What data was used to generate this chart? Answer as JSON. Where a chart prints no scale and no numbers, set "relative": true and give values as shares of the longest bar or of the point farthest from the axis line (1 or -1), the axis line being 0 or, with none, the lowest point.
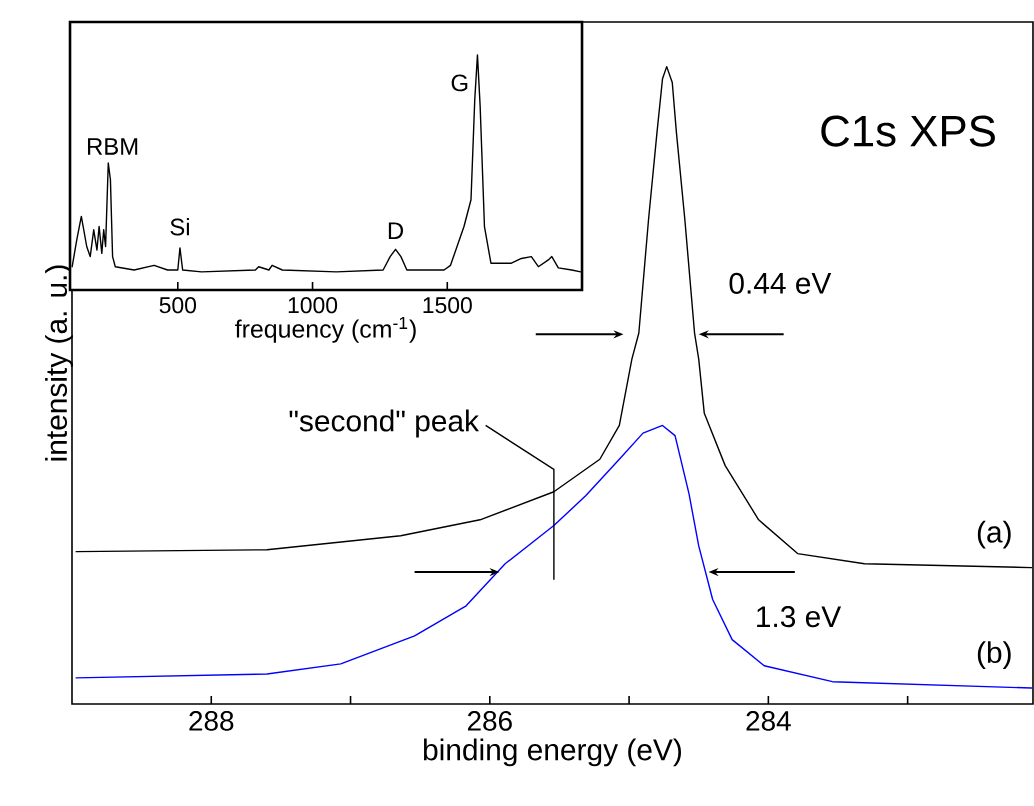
{
  "chart_data": [
    {
      "type": "line",
      "relative": true,
      "title": "C1s XPS",
      "xlabel": "binding energy (eV)",
      "ylabel": "intensity (a. u.)",
      "xlim": [
        289,
        282.1
      ],
      "xticks": [
        288,
        {
          "value": 287,
          "label": null
        },
        286,
        {
          "value": 285,
          "label": null
        },
        284,
        {
          "value": 283,
          "label": null
        }
      ],
      "series": [
        {
          "name": "(a)",
          "color": "#000000",
          "x": [
            288.97,
            287.6,
            286.64,
            286.07,
            285.54,
            285.21,
            285.07,
            284.98,
            284.93,
            284.86,
            284.8,
            284.76,
            284.73,
            284.69,
            284.66,
            284.6,
            284.53,
            284.5,
            284.46,
            284.31,
            284.07,
            283.79,
            283.31,
            282.11
          ],
          "values": [
            0.239,
            0.242,
            0.264,
            0.289,
            0.333,
            0.384,
            0.437,
            0.541,
            0.582,
            0.761,
            0.896,
            0.981,
            1.0,
            0.975,
            0.896,
            0.761,
            0.582,
            0.541,
            0.456,
            0.374,
            0.289,
            0.236,
            0.22,
            0.214
          ]
        },
        {
          "name": "(b)",
          "color": "#0000ff",
          "x": [
            288.97,
            287.6,
            287.07,
            286.54,
            286.17,
            285.89,
            285.54,
            285.31,
            285.07,
            284.9,
            284.76,
            284.67,
            284.57,
            284.5,
            284.4,
            284.26,
            284.03,
            283.54,
            282.11
          ],
          "values": [
            0.041,
            0.047,
            0.063,
            0.107,
            0.154,
            0.22,
            0.28,
            0.327,
            0.384,
            0.425,
            0.437,
            0.421,
            0.33,
            0.248,
            0.164,
            0.101,
            0.06,
            0.035,
            0.025
          ]
        }
      ],
      "annotations": [
        "0.44 eV",
        "1.3 eV",
        "\"second\" peak"
      ]
    },
    {
      "type": "line",
      "relative": true,
      "xlabel": "frequency (cm$^{-1}$)",
      "xlim": [
        100,
        2000
      ],
      "xticks": [
        500,
        1000,
        1500
      ],
      "color": "#000000",
      "x": [
        108,
        125,
        142,
        162,
        175,
        188,
        200,
        208,
        218,
        225,
        232,
        242,
        250,
        258,
        268,
        338,
        412,
        462,
        500,
        508,
        518,
        588,
        788,
        800,
        838,
        850,
        888,
        1088,
        1262,
        1288,
        1308,
        1328,
        1350,
        1488,
        1512,
        1562,
        1588,
        1602,
        1612,
        1622,
        1638,
        1662,
        1738,
        1775,
        1812,
        1838,
        1875,
        1888,
        1912,
        1962,
        1995
      ],
      "values": [
        0.099,
        0.213,
        0.313,
        0.185,
        0.142,
        0.256,
        0.17,
        0.27,
        0.156,
        0.256,
        0.185,
        0.54,
        0.469,
        0.142,
        0.099,
        0.085,
        0.105,
        0.085,
        0.085,
        0.179,
        0.085,
        0.077,
        0.085,
        0.099,
        0.085,
        0.105,
        0.085,
        0.077,
        0.085,
        0.142,
        0.173,
        0.142,
        0.085,
        0.085,
        0.105,
        0.27,
        0.384,
        0.81,
        1.0,
        0.781,
        0.27,
        0.114,
        0.114,
        0.134,
        0.142,
        0.099,
        0.128,
        0.142,
        0.094,
        0.085,
        0.077
      ],
      "annotations": [
        {
          "text": "RBM",
          "x": 258,
          "y": 0.54
        },
        {
          "text": "Si",
          "x": 508,
          "y": 0.179
        },
        {
          "text": "D",
          "x": 1308,
          "y": 0.173
        },
        {
          "text": "G",
          "x": 1612,
          "y": 1.0
        }
      ]
    }
  ]
}
